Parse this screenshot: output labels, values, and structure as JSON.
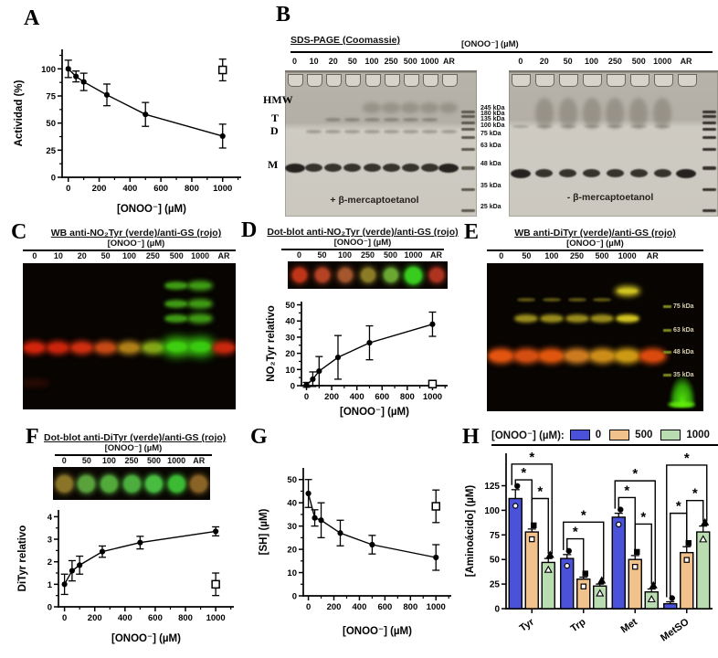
{
  "panels": {
    "A": {
      "letter": "A"
    },
    "B": {
      "letter": "B",
      "title": "SDS-PAGE (Coomassie)",
      "conc_header": "[ONOO⁻] (µM)",
      "left_gel": {
        "lanes": [
          "0",
          "10",
          "20",
          "50",
          "100",
          "250",
          "500",
          "1000",
          "AR"
        ],
        "caption": "+ β-mercaptoetanol"
      },
      "right_gel": {
        "lanes": [
          "0",
          "20",
          "50",
          "100",
          "250",
          "500",
          "1000",
          "AR"
        ],
        "caption": "- β-mercaptoetanol"
      },
      "side_labels": [
        "HMW",
        "T",
        "D",
        "M"
      ],
      "mw_markers": [
        "245 kDa",
        "180 kDa",
        "135 kDa",
        "100 kDa",
        "75 kDa",
        "63 kDa",
        "48 kDa",
        "35 kDa",
        "25 kDa"
      ]
    },
    "C": {
      "letter": "C",
      "title": "WB anti-NO₂Tyr (verde)/anti-GS (rojo)",
      "conc_header": "[ONOO⁻] (µM)",
      "lanes": [
        "0",
        "10",
        "20",
        "50",
        "100",
        "250",
        "500",
        "1000",
        "AR"
      ],
      "band_colors": [
        "#d2250c",
        "#cb240c",
        "#cd2f10",
        "#c64915",
        "#b07f18",
        "#86a518",
        "#3fcf10",
        "#38ca10",
        "#c7280e"
      ],
      "upper_band_color": "#3f9a14",
      "upper_band_lanes": [
        6,
        7
      ]
    },
    "D": {
      "letter": "D",
      "title": "Dot-blot anti-NO₂Tyr (verde)/anti-GS (rojo)",
      "conc_header": "[ONOO⁻] (µM)",
      "lanes": [
        "0",
        "50",
        "100",
        "250",
        "500",
        "1000",
        "AR"
      ],
      "dot_colors": [
        "#c03518",
        "#b44224",
        "#a4562c",
        "#8c7c26",
        "#6aa832",
        "#38cc1e",
        "#ae3420"
      ]
    },
    "E": {
      "letter": "E",
      "title": "WB anti-DiTyr (verde)/anti-GS (rojo)",
      "conc_header": "[ONOO⁻] (µM)",
      "lanes": [
        "0",
        "50",
        "100",
        "250",
        "500",
        "1000",
        "AR"
      ],
      "band_colors": [
        "#e25410",
        "#d44e12",
        "#e0560e",
        "#cc7a20",
        "#cc8c1a",
        "#cc9a14",
        "#da4a0e"
      ],
      "upper_band_color": "#9a8c1c",
      "bright_band_color": "#d2c420",
      "mw_markers": [
        "75 kDa",
        "63 kDa",
        "48 kDa",
        "35 kDa"
      ]
    },
    "F": {
      "letter": "F",
      "title": "Dot-blot anti-DiTyr (verde)/anti-GS (rojo)",
      "conc_header": "[ONOO⁻] (µM)",
      "lanes": [
        "0",
        "50",
        "100",
        "250",
        "500",
        "1000",
        "AR"
      ],
      "dot_colors": [
        "#8a7428",
        "#5aa23c",
        "#52aa3a",
        "#4cae3e",
        "#48bc40",
        "#3cba34",
        "#8a6426"
      ]
    },
    "G": {
      "letter": "G"
    },
    "H": {
      "letter": "H",
      "legend": {
        "title": "[ONOO⁻] (µM):",
        "items": [
          {
            "label": "0",
            "color": "#4a52d9"
          },
          {
            "label": "500",
            "color": "#f2c28c"
          },
          {
            "label": "1000",
            "color": "#b9dcb0"
          }
        ]
      }
    }
  },
  "chart_data": [
    {
      "id": "A",
      "type": "line",
      "xlabel": "[ONOO⁻] (µM)",
      "ylabel": "Actividad (%)",
      "xlim": [
        -40,
        1120
      ],
      "ylim": [
        0,
        118
      ],
      "xticks": [
        0,
        200,
        400,
        600,
        800,
        1000
      ],
      "yticks": [
        0,
        25,
        50,
        75,
        100
      ],
      "x": [
        0,
        50,
        100,
        250,
        500,
        1000
      ],
      "y": [
        100,
        93,
        88,
        76,
        58,
        38
      ],
      "err": [
        8,
        5,
        8,
        10,
        11,
        11
      ],
      "control": {
        "x": 1000,
        "y": 99,
        "err": 10,
        "marker": "open-square"
      }
    },
    {
      "id": "D",
      "type": "line",
      "xlabel": "[ONOO⁻] (µM)",
      "ylabel": "NO₂Tyr relativo",
      "xlim": [
        -40,
        1120
      ],
      "ylim": [
        0,
        52
      ],
      "xticks": [
        0,
        200,
        400,
        600,
        800,
        1000
      ],
      "yticks": [
        0,
        10,
        20,
        30,
        40,
        50
      ],
      "x": [
        0,
        50,
        100,
        250,
        500,
        1000
      ],
      "y": [
        0.5,
        4,
        9,
        17.5,
        26.5,
        38
      ],
      "err": [
        1.5,
        4.5,
        9,
        13.5,
        10.5,
        7.5
      ],
      "control": {
        "x": 1000,
        "y": 1,
        "err": 0,
        "marker": "open-square"
      }
    },
    {
      "id": "F",
      "type": "line",
      "xlabel": "[ONOO⁻] (µM)",
      "ylabel": "DiTyr relativo",
      "xlim": [
        -40,
        1120
      ],
      "ylim": [
        0,
        4.3
      ],
      "xticks": [
        0,
        200,
        400,
        600,
        800,
        1000
      ],
      "yticks": [
        0,
        1,
        2,
        3,
        4
      ],
      "x": [
        0,
        50,
        100,
        250,
        500,
        1000
      ],
      "y": [
        1,
        1.6,
        1.85,
        2.45,
        2.85,
        3.35
      ],
      "err": [
        0.45,
        0.45,
        0.4,
        0.25,
        0.28,
        0.2
      ],
      "control": {
        "x": 1000,
        "y": 1,
        "err": 0.5,
        "marker": "open-square"
      }
    },
    {
      "id": "G",
      "type": "line",
      "xlabel": "[ONOO⁻] (µM)",
      "ylabel": "[SH] (µM)",
      "xlim": [
        -40,
        1120
      ],
      "ylim": [
        0,
        55
      ],
      "xticks": [
        0,
        200,
        400,
        600,
        800,
        1000
      ],
      "yticks": [
        0,
        10,
        20,
        30,
        40,
        50
      ],
      "x": [
        0,
        50,
        100,
        250,
        500,
        1000
      ],
      "y": [
        44,
        33.5,
        32.5,
        27,
        22,
        16.5
      ],
      "err": [
        6,
        3.5,
        7.5,
        5.5,
        4,
        5.5
      ],
      "control": {
        "x": 1000,
        "y": 38.5,
        "err": 7,
        "marker": "open-square"
      }
    },
    {
      "id": "H",
      "type": "bar",
      "ylabel": "[Aminoácido] (µM)",
      "categories": [
        "Tyr",
        "Trp",
        "Met",
        "MetSO"
      ],
      "ylim": [
        0,
        158
      ],
      "yticks": [
        0,
        25,
        50,
        75,
        100,
        125
      ],
      "sig_label": "*",
      "series": [
        {
          "name": "0",
          "color": "#4a52d9",
          "marker": "circle",
          "values": [
            112,
            51,
            93,
            5
          ],
          "errors": [
            9,
            4,
            4,
            2
          ]
        },
        {
          "name": "500",
          "color": "#f2c28c",
          "marker": "square",
          "values": [
            78,
            30,
            50,
            57
          ],
          "errors": [
            3,
            2,
            4,
            6
          ]
        },
        {
          "name": "1000",
          "color": "#b9dcb0",
          "marker": "triangle",
          "values": [
            47,
            23,
            17,
            78
          ],
          "errors": [
            4,
            2,
            3,
            6
          ]
        }
      ],
      "brackets": [
        {
          "cat": 0,
          "a": 0,
          "b": 1,
          "y": 131
        },
        {
          "cat": 0,
          "a": 0,
          "b": 2,
          "y": 147
        },
        {
          "cat": 0,
          "a": 1,
          "b": 2,
          "y": 112
        },
        {
          "cat": 1,
          "a": 0,
          "b": 1,
          "y": 71
        },
        {
          "cat": 1,
          "a": 0,
          "b": 2,
          "y": 88
        },
        {
          "cat": 2,
          "a": 0,
          "b": 1,
          "y": 113
        },
        {
          "cat": 2,
          "a": 0,
          "b": 2,
          "y": 130
        },
        {
          "cat": 2,
          "a": 1,
          "b": 2,
          "y": 86
        },
        {
          "cat": 3,
          "a": 0,
          "b": 1,
          "y": 97
        },
        {
          "cat": 3,
          "a": 0,
          "b": 2,
          "y": 146
        },
        {
          "cat": 3,
          "a": 1,
          "b": 2,
          "y": 110
        }
      ]
    }
  ]
}
